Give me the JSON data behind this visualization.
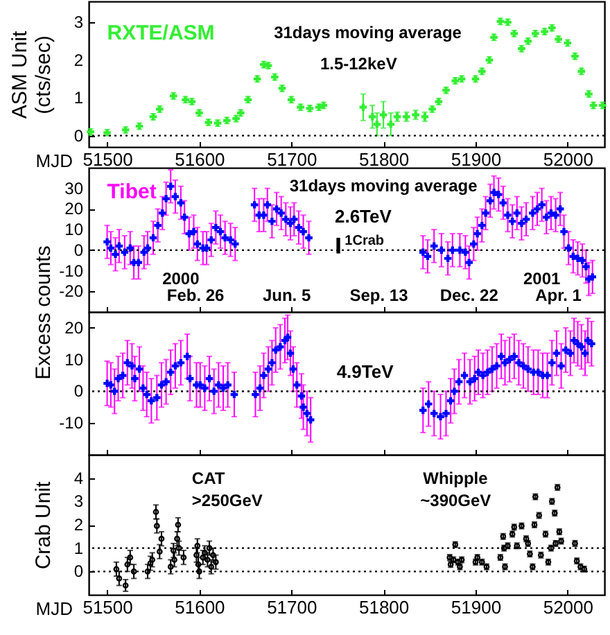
{
  "chart_data": [
    {
      "type": "scatter",
      "xlabel": "MJD",
      "ylabel": "ASM Unit\n(cts/sec)",
      "xlim": [
        51480,
        52040
      ],
      "ylim": [
        -0.3,
        3.55
      ],
      "xticks": [
        51500,
        51600,
        51700,
        51800,
        51900,
        52000
      ],
      "yticks": [
        0,
        1,
        2,
        3
      ],
      "marker": "cross",
      "grid": false,
      "annotations": [
        "31days moving average",
        "1.5-12keV"
      ],
      "ref_lines": [
        {
          "axis": "y",
          "value": 0,
          "color": "#000000",
          "line_style": "dotted"
        }
      ],
      "series": [
        {
          "name": "RXTE/ASM",
          "color": "#33ee33",
          "x": [
            51482,
            51500,
            51520,
            51535,
            51550,
            51557,
            51572,
            51585,
            51592,
            51600,
            51610,
            51620,
            51630,
            51640,
            51645,
            51653,
            51663,
            51670,
            51675,
            51682,
            51690,
            51700,
            51710,
            51720,
            51730,
            51735,
            51778,
            51788,
            51793,
            51800,
            51808,
            51815,
            51825,
            51835,
            51845,
            51853,
            51860,
            51868,
            51878,
            51885,
            51900,
            51907,
            51915,
            51920,
            51927,
            51935,
            51942,
            51950,
            51957,
            51965,
            51975,
            51983,
            51990,
            52000,
            52008,
            52015,
            52023,
            52028,
            52038
          ],
          "values": [
            0.1,
            0.08,
            0.15,
            0.25,
            0.5,
            0.7,
            1.05,
            0.95,
            0.9,
            0.6,
            0.35,
            0.33,
            0.4,
            0.45,
            0.6,
            0.95,
            1.5,
            1.88,
            1.85,
            1.55,
            1.25,
            0.95,
            0.75,
            0.72,
            0.75,
            0.8,
            0.75,
            0.5,
            0.3,
            0.55,
            0.3,
            0.5,
            0.5,
            0.55,
            0.5,
            0.7,
            0.9,
            1.2,
            1.45,
            1.5,
            1.5,
            1.7,
            2.0,
            2.6,
            3.02,
            3.0,
            2.7,
            2.3,
            2.5,
            2.7,
            2.75,
            2.85,
            2.55,
            2.45,
            2.1,
            1.7,
            1.1,
            0.8,
            0.8
          ],
          "errors": [
            0.08,
            0.08,
            0.08,
            0.08,
            0.08,
            0.08,
            0.08,
            0.08,
            0.08,
            0.08,
            0.08,
            0.08,
            0.08,
            0.08,
            0.08,
            0.08,
            0.08,
            0.08,
            0.08,
            0.08,
            0.08,
            0.08,
            0.08,
            0.08,
            0.08,
            0.08,
            0.35,
            0.3,
            0.3,
            0.35,
            0.3,
            0.12,
            0.12,
            0.12,
            0.12,
            0.08,
            0.08,
            0.08,
            0.08,
            0.08,
            0.08,
            0.08,
            0.08,
            0.08,
            0.08,
            0.08,
            0.08,
            0.08,
            0.08,
            0.08,
            0.08,
            0.08,
            0.08,
            0.08,
            0.08,
            0.08,
            0.08,
            0.08,
            0.08
          ]
        }
      ]
    },
    {
      "type": "scatter",
      "ylabel": "Excess counts",
      "xlim": [
        51480,
        52040
      ],
      "ylim": [
        -30,
        40
      ],
      "xticks": [
        51500,
        51600,
        51700,
        51800,
        51900,
        52000
      ],
      "yticks": [
        -20,
        -10,
        0,
        10,
        20,
        30
      ],
      "tick_labels": "y",
      "marker": "cross",
      "grid": false,
      "annotations": [
        "Tibet",
        "31days moving average",
        "2.6TeV",
        "1Crab",
        "2000",
        "Feb. 26",
        "Jun. 5",
        "Sep. 13",
        "Dec. 22",
        "2001",
        "Apr. 1"
      ],
      "ref_lines": [
        {
          "axis": "y",
          "value": 0,
          "color": "#000000",
          "line_style": "dotted"
        }
      ],
      "series": [
        {
          "color": "#0000ff",
          "x": [
            51500,
            51504,
            51509,
            51513,
            51519,
            51525,
            51529,
            51534,
            51540,
            51544,
            51550,
            51555,
            51560,
            51564,
            51569,
            51574,
            51580,
            51584,
            51589,
            51594,
            51598,
            51604,
            51608,
            51613,
            51618,
            51623,
            51628,
            51634,
            51639,
            51660,
            51665,
            51670,
            51674,
            51679,
            51684,
            51689,
            51694,
            51699,
            51703,
            51708,
            51713,
            51719,
            51843,
            51848,
            51855,
            51863,
            51870,
            51875,
            51883,
            51889,
            51893,
            51898,
            51902,
            51907,
            51911,
            51916,
            51920,
            51925,
            51930,
            51935,
            51940,
            51945,
            51950,
            51955,
            51962,
            51967,
            51972,
            51977,
            51982,
            51987,
            51992,
            51996,
            52001,
            52006,
            52011,
            52016,
            52020,
            52023,
            52027
          ],
          "values": [
            4,
            1,
            -2,
            2,
            -1,
            1,
            -6,
            -6,
            -1,
            1,
            6,
            12,
            18,
            25,
            31,
            26,
            23,
            16,
            8,
            9,
            3,
            1,
            1,
            5,
            11,
            9,
            6,
            5,
            3,
            22,
            17,
            17,
            22,
            14,
            20,
            18,
            15,
            13,
            15,
            11,
            9,
            6,
            -1,
            -3,
            2,
            0,
            -4,
            0,
            0,
            -1,
            -6,
            3,
            8,
            12,
            18,
            24,
            28,
            27,
            23,
            17,
            14,
            18,
            13,
            15,
            18,
            20,
            22,
            16,
            18,
            17,
            20,
            9,
            1,
            -3,
            -4,
            -5,
            -8,
            -14,
            -13
          ],
          "errors": [
            8,
            8,
            8,
            8,
            8,
            8,
            8,
            8,
            8,
            8,
            8,
            8,
            8,
            8,
            8,
            8,
            8,
            8,
            8,
            8,
            8,
            8,
            8,
            8,
            8,
            8,
            8,
            8,
            8,
            8,
            8,
            8,
            8,
            8,
            8,
            8,
            8,
            8,
            8,
            8,
            8,
            8,
            8,
            8,
            8,
            8,
            8,
            8,
            8,
            8,
            8,
            8,
            8,
            8,
            8,
            8,
            8,
            8,
            8,
            8,
            8,
            8,
            8,
            8,
            8,
            8,
            8,
            8,
            8,
            8,
            8,
            8,
            8,
            8,
            8,
            8,
            8,
            8,
            8
          ]
        }
      ]
    },
    {
      "type": "scatter",
      "xlim": [
        51480,
        52040
      ],
      "ylim": [
        -20,
        25
      ],
      "xticks": [
        51500,
        51600,
        51700,
        51800,
        51900,
        52000
      ],
      "yticks": [
        -10,
        0,
        10,
        20
      ],
      "tick_labels": "y",
      "marker": "cross",
      "grid": false,
      "annotations": [
        "4.9TeV"
      ],
      "ref_lines": [
        {
          "axis": "y",
          "value": 0,
          "color": "#000000",
          "line_style": "dotted"
        }
      ],
      "series": [
        {
          "color": "#0000ff",
          "x": [
            51500,
            51504,
            51508,
            51512,
            51517,
            51522,
            51527,
            51530,
            51535,
            51539,
            51543,
            51548,
            51554,
            51559,
            51564,
            51569,
            51574,
            51580,
            51587,
            51590,
            51597,
            51601,
            51606,
            51611,
            51616,
            51621,
            51626,
            51631,
            51638,
            51661,
            51666,
            51670,
            51675,
            51679,
            51683,
            51688,
            51693,
            51696,
            51699,
            51702,
            51706,
            51711,
            51713,
            51717,
            51721,
            51843,
            51849,
            51855,
            51862,
            51868,
            51873,
            51877,
            51882,
            51888,
            51894,
            51899,
            51903,
            51908,
            51913,
            51918,
            51923,
            51928,
            51932,
            51937,
            51942,
            51947,
            51952,
            51957,
            51963,
            51968,
            51973,
            51978,
            51983,
            51988,
            51993,
            51998,
            52003,
            52007,
            52011,
            52015,
            52019,
            52022,
            52026
          ],
          "values": [
            2.5,
            2,
            0,
            4,
            5,
            9,
            8,
            4,
            7,
            1,
            -1,
            -3,
            -2,
            2,
            3,
            6,
            8,
            9,
            11,
            4,
            2,
            2,
            1,
            4,
            0,
            2,
            1,
            2,
            -1,
            -1,
            1,
            5,
            7,
            9,
            13,
            14,
            16,
            17,
            12,
            7,
            2,
            -1.5,
            -5,
            -7,
            -9,
            -6,
            -4,
            -7,
            -8,
            -7,
            -3,
            0,
            3,
            5,
            3,
            4,
            6,
            5,
            6,
            7,
            8,
            11,
            9,
            10,
            11,
            9,
            8,
            7,
            6,
            6,
            5,
            5,
            9,
            12,
            8,
            13,
            12,
            16,
            15,
            14,
            12,
            16,
            15
          ],
          "errors": [
            7,
            7,
            7,
            7,
            7,
            7,
            7,
            7,
            7,
            7,
            7,
            7,
            7,
            7,
            7,
            7,
            7,
            7,
            7,
            7,
            7,
            7,
            7,
            7,
            7,
            7,
            7,
            7,
            7,
            7,
            7,
            7,
            7,
            7,
            7,
            7,
            7,
            7,
            7,
            7,
            7,
            7,
            7,
            7,
            7,
            7,
            7,
            7,
            7,
            7,
            7,
            7,
            7,
            7,
            7,
            7,
            7,
            7,
            7,
            7,
            7,
            7,
            7,
            7,
            7,
            7,
            7,
            7,
            7,
            7,
            7,
            7,
            7,
            7,
            7,
            7,
            7,
            7,
            7,
            7,
            7,
            7,
            7
          ]
        }
      ]
    },
    {
      "type": "scatter",
      "xlabel": "MJD",
      "ylabel": "Crab Unit",
      "xlim": [
        51480,
        52040
      ],
      "ylim": [
        -1,
        5
      ],
      "xticks": [
        51500,
        51600,
        51700,
        51800,
        51900,
        52000
      ],
      "yticks": [
        0,
        1,
        2,
        3,
        4
      ],
      "marker": "circle",
      "grid": false,
      "annotations": [
        "CAT",
        ">250GeV",
        "Whipple",
        "~390GeV"
      ],
      "ref_lines": [
        {
          "axis": "y",
          "value": 0,
          "color": "#000000",
          "line_style": "dotted"
        },
        {
          "axis": "y",
          "value": 1,
          "color": "#000000",
          "line_style": "dotted"
        }
      ],
      "series": [
        {
          "color": "#000000",
          "x": [
            51510,
            51513,
            51520,
            51522,
            51525,
            51529,
            51544,
            51547,
            51549,
            51553,
            51554,
            51557,
            51559,
            51569,
            51572,
            51573,
            51576,
            51577,
            51578,
            51583,
            51597,
            51598,
            51599,
            51600,
            51604,
            51606,
            51609,
            51611,
            51613,
            51615,
            51618
          ],
          "values": [
            0.1,
            -0.3,
            -0.6,
            0.3,
            0.6,
            0,
            0,
            0.35,
            0.5,
            2.55,
            1.95,
            0.85,
            1.4,
            0.2,
            0.9,
            0.5,
            1.4,
            2.0,
            1.0,
            0.6,
            0.7,
            1.1,
            0.3,
            0,
            0.6,
            0.8,
            0.5,
            1.0,
            0.2,
            0.7,
            0.4
          ],
          "errors": [
            0.3,
            0.3,
            0.25,
            0.3,
            0.3,
            0.3,
            0.3,
            0.3,
            0.3,
            0.3,
            0.3,
            0.3,
            0.3,
            0.3,
            0.3,
            0.3,
            0.3,
            0.3,
            0.3,
            0.3,
            0.3,
            0.3,
            0.3,
            0.3,
            0.3,
            0.3,
            0.3,
            0.3,
            0.3,
            0.3,
            0.3
          ]
        },
        {
          "color": "#000000",
          "x": [
            51872,
            51873,
            51876,
            51878,
            51881,
            51883,
            51885,
            51900,
            51902,
            51907,
            51912,
            51927,
            51930,
            51931,
            51932,
            51935,
            51940,
            51942,
            51945,
            51950,
            51955,
            51957,
            51959,
            51962,
            51964,
            51965,
            51969,
            51971,
            51976,
            51979,
            51982,
            51983,
            51986,
            51987,
            51989,
            51991,
            51993,
            52008,
            52010,
            52014,
            52018
          ],
          "values": [
            0.6,
            0.3,
            0.5,
            1.15,
            0.4,
            0.2,
            0.5,
            0.4,
            0.6,
            0.4,
            0.2,
            0.6,
            1.5,
            1.0,
            0.2,
            1.1,
            1.6,
            1.9,
            1.1,
            1.95,
            1.4,
            1.2,
            0.75,
            0.2,
            2.0,
            3.2,
            2.4,
            0.7,
            1.6,
            0.4,
            1.0,
            3.0,
            2.5,
            1.2,
            3.6,
            1.7,
            1.3,
            1.2,
            0.45,
            0.2,
            0.1
          ],
          "errors": [
            0.12,
            0.12,
            0.12,
            0.12,
            0.12,
            0.12,
            0.12,
            0.12,
            0.12,
            0.12,
            0.12,
            0.12,
            0.12,
            0.12,
            0.12,
            0.12,
            0.12,
            0.12,
            0.12,
            0.12,
            0.12,
            0.12,
            0.12,
            0.12,
            0.12,
            0.12,
            0.12,
            0.12,
            0.12,
            0.12,
            0.12,
            0.12,
            0.12,
            0.12,
            0.12,
            0.12,
            0.12,
            0.12,
            0.12,
            0.12,
            0.12
          ]
        }
      ]
    }
  ]
}
